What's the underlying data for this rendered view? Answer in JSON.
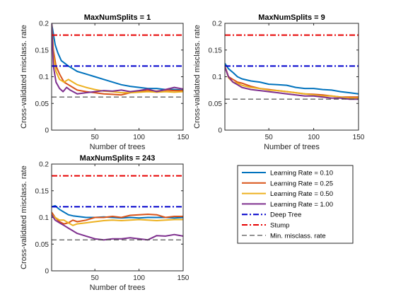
{
  "chart_data": [
    {
      "type": "line",
      "title": "MaxNumSplits = 1",
      "xlabel": "Number of trees",
      "ylabel": "Cross-validated misclass. rate",
      "xlim": [
        1,
        150
      ],
      "ylim": [
        0,
        0.2
      ],
      "xticks": [
        "50",
        "100",
        "150"
      ],
      "yticks": [
        "0",
        "0.05",
        "0.1",
        "0.15",
        "0.2"
      ],
      "series": [
        {
          "name": "Learning Rate = 0.10",
          "color": "#0072BD",
          "style": "solid",
          "x": [
            1,
            3,
            5,
            8,
            12,
            16,
            20,
            25,
            30,
            40,
            50,
            60,
            70,
            80,
            90,
            100,
            110,
            120,
            130,
            140,
            150
          ],
          "y": [
            0.2,
            0.18,
            0.16,
            0.145,
            0.13,
            0.125,
            0.12,
            0.115,
            0.11,
            0.105,
            0.1,
            0.095,
            0.09,
            0.085,
            0.082,
            0.08,
            0.078,
            0.078,
            0.076,
            0.076,
            0.075
          ]
        },
        {
          "name": "Learning Rate = 0.25",
          "color": "#D95319",
          "style": "solid",
          "x": [
            1,
            3,
            6,
            10,
            15,
            20,
            25,
            30,
            40,
            50,
            60,
            70,
            80,
            90,
            100,
            110,
            120,
            130,
            140,
            150
          ],
          "y": [
            0.2,
            0.15,
            0.12,
            0.105,
            0.09,
            0.085,
            0.08,
            0.075,
            0.072,
            0.07,
            0.068,
            0.067,
            0.066,
            0.07,
            0.072,
            0.074,
            0.073,
            0.075,
            0.074,
            0.074
          ]
        },
        {
          "name": "Learning Rate = 0.50",
          "color": "#EDB120",
          "style": "solid",
          "x": [
            1,
            3,
            6,
            10,
            15,
            20,
            25,
            30,
            40,
            50,
            60,
            70,
            80,
            90,
            100,
            110,
            120,
            130,
            140,
            150
          ],
          "y": [
            0.2,
            0.14,
            0.11,
            0.095,
            0.09,
            0.095,
            0.09,
            0.085,
            0.08,
            0.076,
            0.073,
            0.072,
            0.07,
            0.07,
            0.071,
            0.072,
            0.071,
            0.072,
            0.071,
            0.072
          ]
        },
        {
          "name": "Learning Rate = 1.00",
          "color": "#7E2F8E",
          "style": "solid",
          "x": [
            1,
            3,
            6,
            10,
            14,
            18,
            22,
            30,
            40,
            50,
            60,
            70,
            80,
            90,
            100,
            110,
            120,
            130,
            140,
            150
          ],
          "y": [
            0.2,
            0.12,
            0.09,
            0.078,
            0.072,
            0.08,
            0.075,
            0.068,
            0.07,
            0.072,
            0.074,
            0.073,
            0.075,
            0.072,
            0.074,
            0.077,
            0.072,
            0.076,
            0.08,
            0.077
          ]
        },
        {
          "name": "Deep Tree",
          "color": "#0000CC",
          "style": "dashdot",
          "x": [
            1,
            150
          ],
          "y": [
            0.12,
            0.12
          ]
        },
        {
          "name": "Stump",
          "color": "#E60000",
          "style": "dashdot",
          "x": [
            1,
            150
          ],
          "y": [
            0.178,
            0.178
          ]
        },
        {
          "name": "Min. misclass. rate",
          "color": "#404040",
          "style": "dashed",
          "x": [
            1,
            150
          ],
          "y": [
            0.062,
            0.062
          ]
        }
      ]
    },
    {
      "type": "line",
      "title": "MaxNumSplits = 9",
      "xlabel": "Number of trees",
      "ylabel": "Cross-validated misclass. rate",
      "xlim": [
        1,
        150
      ],
      "ylim": [
        0,
        0.2
      ],
      "xticks": [
        "50",
        "100",
        "150"
      ],
      "yticks": [
        "0",
        "0.05",
        "0.1",
        "0.15",
        "0.2"
      ],
      "series": [
        {
          "name": "Learning Rate = 0.10",
          "color": "#0072BD",
          "style": "solid",
          "x": [
            1,
            5,
            10,
            15,
            20,
            30,
            40,
            50,
            60,
            70,
            80,
            90,
            100,
            110,
            120,
            130,
            140,
            150
          ],
          "y": [
            0.125,
            0.115,
            0.108,
            0.1,
            0.096,
            0.092,
            0.09,
            0.086,
            0.085,
            0.084,
            0.08,
            0.078,
            0.078,
            0.076,
            0.075,
            0.072,
            0.07,
            0.068
          ]
        },
        {
          "name": "Learning Rate = 0.25",
          "color": "#D95319",
          "style": "solid",
          "x": [
            1,
            5,
            10,
            15,
            20,
            30,
            40,
            50,
            60,
            70,
            80,
            90,
            100,
            110,
            120,
            130,
            140,
            150
          ],
          "y": [
            0.12,
            0.1,
            0.095,
            0.09,
            0.088,
            0.082,
            0.078,
            0.076,
            0.074,
            0.072,
            0.07,
            0.068,
            0.067,
            0.066,
            0.064,
            0.062,
            0.062,
            0.062
          ]
        },
        {
          "name": "Learning Rate = 0.50",
          "color": "#EDB120",
          "style": "solid",
          "x": [
            1,
            5,
            10,
            15,
            20,
            30,
            40,
            50,
            60,
            70,
            80,
            90,
            100,
            110,
            120,
            130,
            140,
            150
          ],
          "y": [
            0.12,
            0.098,
            0.09,
            0.088,
            0.084,
            0.08,
            0.078,
            0.075,
            0.074,
            0.072,
            0.07,
            0.068,
            0.066,
            0.064,
            0.064,
            0.062,
            0.06,
            0.06
          ]
        },
        {
          "name": "Learning Rate = 1.00",
          "color": "#7E2F8E",
          "style": "solid",
          "x": [
            1,
            5,
            10,
            15,
            20,
            30,
            40,
            50,
            60,
            70,
            80,
            90,
            100,
            110,
            120,
            130,
            140,
            150
          ],
          "y": [
            0.118,
            0.1,
            0.09,
            0.085,
            0.08,
            0.076,
            0.074,
            0.072,
            0.07,
            0.068,
            0.066,
            0.064,
            0.064,
            0.062,
            0.06,
            0.06,
            0.058,
            0.058
          ]
        },
        {
          "name": "Deep Tree",
          "color": "#0000CC",
          "style": "dashdot",
          "x": [
            1,
            150
          ],
          "y": [
            0.12,
            0.12
          ]
        },
        {
          "name": "Stump",
          "color": "#E60000",
          "style": "dashdot",
          "x": [
            1,
            150
          ],
          "y": [
            0.178,
            0.178
          ]
        },
        {
          "name": "Min. misclass. rate",
          "color": "#404040",
          "style": "dashed",
          "x": [
            1,
            150
          ],
          "y": [
            0.058,
            0.058
          ]
        }
      ]
    },
    {
      "type": "line",
      "title": "MaxNumSplits = 243",
      "xlabel": "Number of trees",
      "ylabel": "Cross-validated misclass. rate",
      "xlim": [
        1,
        150
      ],
      "ylim": [
        0,
        0.2
      ],
      "xticks": [
        "50",
        "100",
        "150"
      ],
      "yticks": [
        "0",
        "0.05",
        "0.1",
        "0.15",
        "0.2"
      ],
      "series": [
        {
          "name": "Learning Rate = 0.10",
          "color": "#0072BD",
          "style": "solid",
          "x": [
            1,
            5,
            10,
            15,
            20,
            25,
            30,
            40,
            50,
            60,
            70,
            80,
            90,
            100,
            110,
            120,
            130,
            140,
            150
          ],
          "y": [
            0.12,
            0.122,
            0.115,
            0.11,
            0.105,
            0.103,
            0.102,
            0.1,
            0.1,
            0.101,
            0.1,
            0.099,
            0.1,
            0.099,
            0.1,
            0.1,
            0.1,
            0.099,
            0.1
          ]
        },
        {
          "name": "Learning Rate = 0.25",
          "color": "#D95319",
          "style": "solid",
          "x": [
            1,
            5,
            10,
            15,
            20,
            25,
            30,
            40,
            50,
            60,
            70,
            80,
            90,
            100,
            110,
            120,
            130,
            140,
            150
          ],
          "y": [
            0.11,
            0.1,
            0.092,
            0.088,
            0.09,
            0.095,
            0.092,
            0.095,
            0.1,
            0.1,
            0.102,
            0.1,
            0.104,
            0.105,
            0.106,
            0.105,
            0.1,
            0.102,
            0.102
          ]
        },
        {
          "name": "Learning Rate = 0.50",
          "color": "#EDB120",
          "style": "solid",
          "x": [
            1,
            5,
            10,
            15,
            20,
            25,
            30,
            40,
            50,
            60,
            70,
            80,
            90,
            100,
            110,
            120,
            130,
            140,
            150
          ],
          "y": [
            0.105,
            0.1,
            0.095,
            0.095,
            0.09,
            0.085,
            0.088,
            0.09,
            0.092,
            0.094,
            0.095,
            0.094,
            0.095,
            0.096,
            0.095,
            0.094,
            0.095,
            0.096,
            0.096
          ]
        },
        {
          "name": "Learning Rate = 1.00",
          "color": "#7E2F8E",
          "style": "solid",
          "x": [
            1,
            5,
            10,
            15,
            20,
            25,
            30,
            40,
            50,
            60,
            70,
            80,
            90,
            100,
            110,
            120,
            130,
            140,
            150
          ],
          "y": [
            0.105,
            0.095,
            0.09,
            0.085,
            0.08,
            0.075,
            0.07,
            0.065,
            0.06,
            0.058,
            0.06,
            0.06,
            0.062,
            0.06,
            0.058,
            0.066,
            0.065,
            0.068,
            0.065
          ]
        },
        {
          "name": "Deep Tree",
          "color": "#0000CC",
          "style": "dashdot",
          "x": [
            1,
            150
          ],
          "y": [
            0.12,
            0.12
          ]
        },
        {
          "name": "Stump",
          "color": "#E60000",
          "style": "dashdot",
          "x": [
            1,
            150
          ],
          "y": [
            0.178,
            0.178
          ]
        },
        {
          "name": "Min. misclass. rate",
          "color": "#404040",
          "style": "dashed",
          "x": [
            1,
            150
          ],
          "y": [
            0.058,
            0.058
          ]
        }
      ]
    }
  ],
  "legend": {
    "placement": "bottom-right",
    "entries": [
      {
        "label": "Learning Rate = 0.10",
        "color": "#0072BD",
        "style": "solid"
      },
      {
        "label": "Learning Rate = 0.25",
        "color": "#D95319",
        "style": "solid"
      },
      {
        "label": "Learning Rate = 0.50",
        "color": "#EDB120",
        "style": "solid"
      },
      {
        "label": "Learning Rate = 1.00",
        "color": "#7E2F8E",
        "style": "solid"
      },
      {
        "label": "Deep Tree",
        "color": "#0000CC",
        "style": "dashdot"
      },
      {
        "label": "Stump",
        "color": "#E60000",
        "style": "dashdot"
      },
      {
        "label": "Min. misclass. rate",
        "color": "#404040",
        "style": "dashed"
      }
    ]
  }
}
